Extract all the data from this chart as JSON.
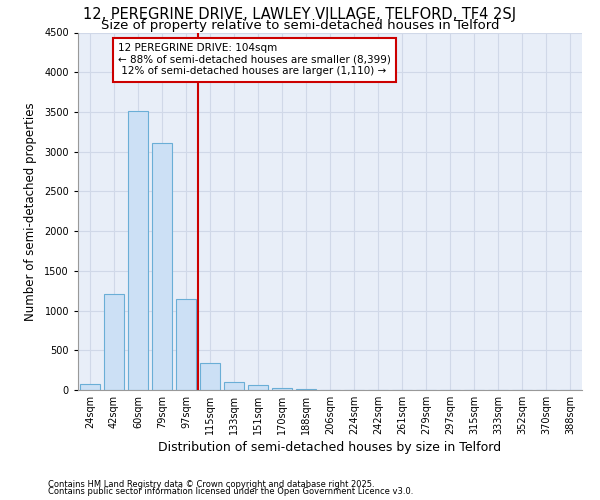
{
  "title1": "12, PEREGRINE DRIVE, LAWLEY VILLAGE, TELFORD, TF4 2SJ",
  "title2": "Size of property relative to semi-detached houses in Telford",
  "xlabel": "Distribution of semi-detached houses by size in Telford",
  "ylabel": "Number of semi-detached properties",
  "categories": [
    "24sqm",
    "42sqm",
    "60sqm",
    "79sqm",
    "97sqm",
    "115sqm",
    "133sqm",
    "151sqm",
    "170sqm",
    "188sqm",
    "206sqm",
    "224sqm",
    "242sqm",
    "261sqm",
    "279sqm",
    "297sqm",
    "315sqm",
    "333sqm",
    "352sqm",
    "370sqm",
    "388sqm"
  ],
  "values": [
    75,
    1210,
    3510,
    3110,
    1150,
    335,
    105,
    65,
    20,
    8,
    4,
    2,
    1,
    0,
    0,
    0,
    0,
    0,
    0,
    0,
    0
  ],
  "bar_color": "#cce0f5",
  "bar_edge_color": "#6aaed6",
  "vline_color": "#cc0000",
  "annotation_text": "12 PEREGRINE DRIVE: 104sqm\n← 88% of semi-detached houses are smaller (8,399)\n 12% of semi-detached houses are larger (1,110) →",
  "annotation_box_facecolor": "#ffffff",
  "annotation_box_edgecolor": "#cc0000",
  "background_color": "#ffffff",
  "plot_bg_color": "#e8eef8",
  "ylim": [
    0,
    4500
  ],
  "yticks": [
    0,
    500,
    1000,
    1500,
    2000,
    2500,
    3000,
    3500,
    4000,
    4500
  ],
  "footnote1": "Contains HM Land Registry data © Crown copyright and database right 2025.",
  "footnote2": "Contains public sector information licensed under the Open Government Licence v3.0.",
  "title1_fontsize": 10.5,
  "title2_fontsize": 9.5,
  "xlabel_fontsize": 9,
  "ylabel_fontsize": 8.5,
  "tick_fontsize": 7,
  "annotation_fontsize": 7.5,
  "footnote_fontsize": 6,
  "vline_x": 4.5,
  "grid_color": "#d0d8e8",
  "grid_linewidth": 0.8
}
